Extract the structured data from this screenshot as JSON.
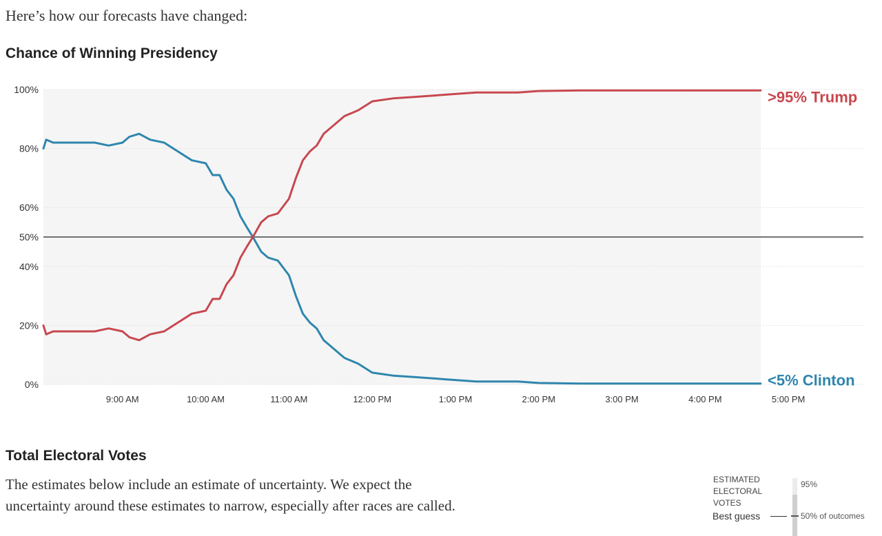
{
  "intro_text": "Here’s how our forecasts have changed:",
  "chart_section_title": "Chance of Winning Presidency",
  "chart_data": {
    "type": "line",
    "title": "Chance of Winning Presidency",
    "xlabel": "",
    "ylabel": "",
    "ylim": [
      0,
      100
    ],
    "yticks": [
      0,
      20,
      40,
      50,
      60,
      80,
      100
    ],
    "ytick_labels": [
      "0%",
      "20%",
      "40%",
      "50%",
      "60%",
      "80%",
      "100%"
    ],
    "xlim": [
      "8:03 AM",
      "4:40 PM"
    ],
    "xtick_labels": [
      "9:00 AM",
      "10:00 AM",
      "11:00 AM",
      "12:00 PM",
      "1:00 PM",
      "2:00 PM",
      "3:00 PM",
      "4:00 PM",
      "5:00 PM"
    ],
    "reference_line": 50,
    "grid": true,
    "series": [
      {
        "name": "Clinton",
        "end_label": "<5% Clinton",
        "color": "#2e86ad",
        "points": [
          [
            "8:03 AM",
            80
          ],
          [
            "8:05 AM",
            83
          ],
          [
            "8:10 AM",
            82
          ],
          [
            "8:20 AM",
            82
          ],
          [
            "8:30 AM",
            82
          ],
          [
            "8:40 AM",
            82
          ],
          [
            "8:50 AM",
            81
          ],
          [
            "9:00 AM",
            82
          ],
          [
            "9:05 AM",
            84
          ],
          [
            "9:12 AM",
            85
          ],
          [
            "9:20 AM",
            83
          ],
          [
            "9:30 AM",
            82
          ],
          [
            "9:40 AM",
            79
          ],
          [
            "9:50 AM",
            76
          ],
          [
            "10:00 AM",
            75
          ],
          [
            "10:05 AM",
            71
          ],
          [
            "10:10 AM",
            71
          ],
          [
            "10:15 AM",
            66
          ],
          [
            "10:20 AM",
            63
          ],
          [
            "10:25 AM",
            57
          ],
          [
            "10:30 AM",
            53
          ],
          [
            "10:34 AM",
            50
          ],
          [
            "10:40 AM",
            45
          ],
          [
            "10:45 AM",
            43
          ],
          [
            "10:52 AM",
            42
          ],
          [
            "11:00 AM",
            37
          ],
          [
            "11:05 AM",
            30
          ],
          [
            "11:10 AM",
            24
          ],
          [
            "11:15 AM",
            21
          ],
          [
            "11:20 AM",
            19
          ],
          [
            "11:25 AM",
            15
          ],
          [
            "11:30 AM",
            13
          ],
          [
            "11:40 AM",
            9
          ],
          [
            "11:50 AM",
            7
          ],
          [
            "12:00 PM",
            4
          ],
          [
            "12:15 PM",
            3
          ],
          [
            "12:30 PM",
            2.5
          ],
          [
            "12:45 PM",
            2
          ],
          [
            "1:00 PM",
            1.5
          ],
          [
            "1:15 PM",
            1
          ],
          [
            "1:30 PM",
            1
          ],
          [
            "1:45 PM",
            1
          ],
          [
            "2:00 PM",
            0.5
          ],
          [
            "2:30 PM",
            0.3
          ],
          [
            "3:00 PM",
            0.3
          ],
          [
            "3:30 PM",
            0.3
          ],
          [
            "4:00 PM",
            0.3
          ],
          [
            "4:40 PM",
            0.3
          ]
        ]
      },
      {
        "name": "Trump",
        "end_label": ">95% Trump",
        "color": "#c8474f",
        "points": [
          [
            "8:03 AM",
            20
          ],
          [
            "8:05 AM",
            17
          ],
          [
            "8:10 AM",
            18
          ],
          [
            "8:20 AM",
            18
          ],
          [
            "8:30 AM",
            18
          ],
          [
            "8:40 AM",
            18
          ],
          [
            "8:50 AM",
            19
          ],
          [
            "9:00 AM",
            18
          ],
          [
            "9:05 AM",
            16
          ],
          [
            "9:12 AM",
            15
          ],
          [
            "9:20 AM",
            17
          ],
          [
            "9:30 AM",
            18
          ],
          [
            "9:40 AM",
            21
          ],
          [
            "9:50 AM",
            24
          ],
          [
            "10:00 AM",
            25
          ],
          [
            "10:05 AM",
            29
          ],
          [
            "10:10 AM",
            29
          ],
          [
            "10:15 AM",
            34
          ],
          [
            "10:20 AM",
            37
          ],
          [
            "10:25 AM",
            43
          ],
          [
            "10:30 AM",
            47
          ],
          [
            "10:34 AM",
            50
          ],
          [
            "10:40 AM",
            55
          ],
          [
            "10:45 AM",
            57
          ],
          [
            "10:52 AM",
            58
          ],
          [
            "11:00 AM",
            63
          ],
          [
            "11:05 AM",
            70
          ],
          [
            "11:10 AM",
            76
          ],
          [
            "11:15 AM",
            79
          ],
          [
            "11:20 AM",
            81
          ],
          [
            "11:25 AM",
            85
          ],
          [
            "11:30 AM",
            87
          ],
          [
            "11:40 AM",
            91
          ],
          [
            "11:50 AM",
            93
          ],
          [
            "12:00 PM",
            96
          ],
          [
            "12:15 PM",
            97
          ],
          [
            "12:30 PM",
            97.5
          ],
          [
            "12:45 PM",
            98
          ],
          [
            "1:00 PM",
            98.5
          ],
          [
            "1:15 PM",
            99
          ],
          [
            "1:30 PM",
            99
          ],
          [
            "1:45 PM",
            99
          ],
          [
            "2:00 PM",
            99.5
          ],
          [
            "2:30 PM",
            99.7
          ],
          [
            "3:00 PM",
            99.7
          ],
          [
            "3:30 PM",
            99.7
          ],
          [
            "4:00 PM",
            99.7
          ],
          [
            "4:40 PM",
            99.7
          ]
        ]
      }
    ]
  },
  "ev_section_title": "Total Electoral Votes",
  "ev_description": "The estimates below include an estimate of uncertainty. We expect the uncertainty around these estimates to narrow, especially after races are called.",
  "legend": {
    "heading": "ESTIMATED ELECTORAL VOTES",
    "best_guess": "Best guess",
    "p95": "95%",
    "p50": "50% of outcomes"
  }
}
